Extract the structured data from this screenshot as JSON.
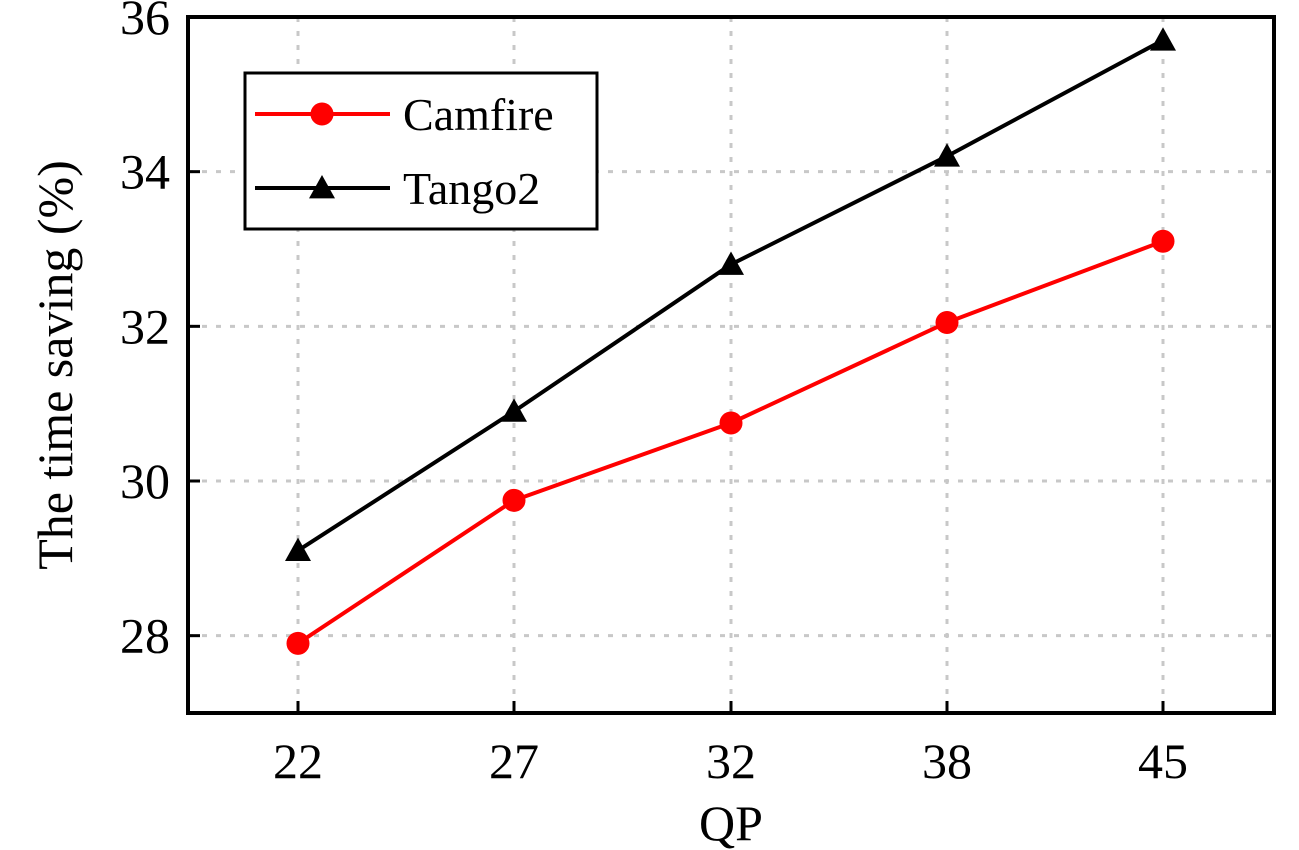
{
  "chart_data": {
    "type": "line",
    "title": "",
    "xlabel": "QP",
    "ylabel": "The time saving (%)",
    "categories": [
      "22",
      "27",
      "32",
      "38",
      "45"
    ],
    "ylim": [
      27,
      36
    ],
    "yticks": [
      28,
      30,
      32,
      34,
      36
    ],
    "grid": true,
    "legend_position": "top-left",
    "series": [
      {
        "name": "Camfire",
        "values": [
          27.9,
          29.75,
          30.75,
          32.05,
          33.1
        ],
        "color": "#ff0000",
        "marker": "circle"
      },
      {
        "name": "Tango2",
        "values": [
          29.1,
          30.9,
          32.8,
          34.2,
          35.7
        ],
        "color": "#000000",
        "marker": "triangle"
      }
    ]
  }
}
